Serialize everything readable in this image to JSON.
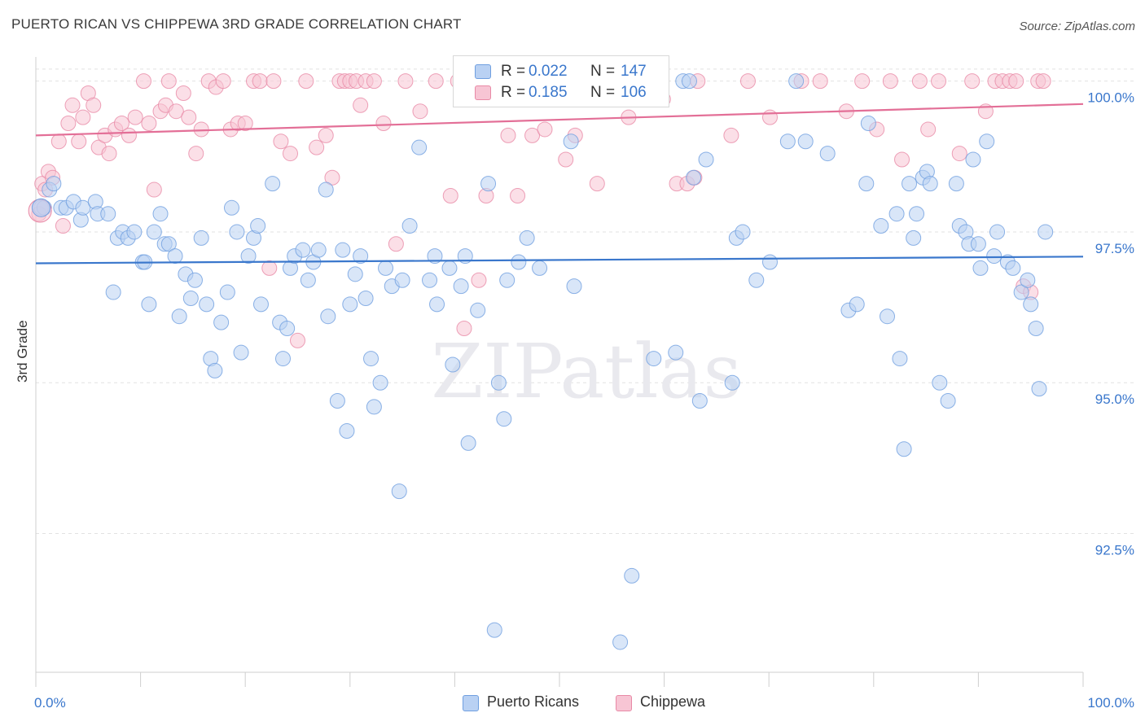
{
  "title": "PUERTO RICAN VS CHIPPEWA 3RD GRADE CORRELATION CHART",
  "source": "Source: ZipAtlas.com",
  "watermark": "ZIPatlas",
  "chart_data": {
    "type": "scatter",
    "xlabel": "",
    "ylabel": "3rd Grade",
    "xlim": [
      0,
      100
    ],
    "ylim": [
      90.2,
      100.4
    ],
    "x_tick_labels": [
      "0.0%",
      "100.0%"
    ],
    "y_ticks": [
      92.5,
      95.0,
      97.5,
      100.0
    ],
    "y_tick_labels": [
      "92.5%",
      "95.0%",
      "97.5%",
      "100.0%"
    ],
    "legend": [
      {
        "name": "Puerto Ricans",
        "r_label": "R =",
        "r": "0.022",
        "n_label": "N =",
        "n": "147",
        "color": "#6f9fe0",
        "fill": "#b9d1f3"
      },
      {
        "name": "Chippewa",
        "r_label": "R =",
        "r": "0.185",
        "n_label": "N =",
        "n": "106",
        "color": "#e889a6",
        "fill": "#f7c5d4"
      }
    ],
    "series": [
      {
        "name": "Puerto Ricans",
        "color": "#3a77cc",
        "trend": {
          "y0": 96.98,
          "y1": 97.09
        },
        "points": [
          [
            0.5,
            97.9
          ],
          [
            0.8,
            97.9
          ],
          [
            1.3,
            98.2
          ],
          [
            1.7,
            98.3
          ],
          [
            2.4,
            97.9
          ],
          [
            2.9,
            97.9
          ],
          [
            3.6,
            98.0
          ],
          [
            4.3,
            97.7
          ],
          [
            4.5,
            97.9
          ],
          [
            5.7,
            98.0
          ],
          [
            5.9,
            97.8
          ],
          [
            6.9,
            97.8
          ],
          [
            7.4,
            96.5
          ],
          [
            7.8,
            97.4
          ],
          [
            8.3,
            97.5
          ],
          [
            8.8,
            97.4
          ],
          [
            9.4,
            97.5
          ],
          [
            10.2,
            97.0
          ],
          [
            10.4,
            97.0
          ],
          [
            10.8,
            96.3
          ],
          [
            11.3,
            97.5
          ],
          [
            11.9,
            97.8
          ],
          [
            12.3,
            97.3
          ],
          [
            12.7,
            97.3
          ],
          [
            13.3,
            97.1
          ],
          [
            13.7,
            96.1
          ],
          [
            14.3,
            96.8
          ],
          [
            14.8,
            96.4
          ],
          [
            15.2,
            96.7
          ],
          [
            15.8,
            97.4
          ],
          [
            16.3,
            96.3
          ],
          [
            16.7,
            95.4
          ],
          [
            17.1,
            95.2
          ],
          [
            17.7,
            96.0
          ],
          [
            18.3,
            96.5
          ],
          [
            18.7,
            97.9
          ],
          [
            19.2,
            97.5
          ],
          [
            19.6,
            95.5
          ],
          [
            20.3,
            97.1
          ],
          [
            20.8,
            97.4
          ],
          [
            21.2,
            97.6
          ],
          [
            21.5,
            96.3
          ],
          [
            22.6,
            98.3
          ],
          [
            23.3,
            96.0
          ],
          [
            23.6,
            95.4
          ],
          [
            24.0,
            95.9
          ],
          [
            24.3,
            96.9
          ],
          [
            24.7,
            97.1
          ],
          [
            25.5,
            97.2
          ],
          [
            26.0,
            96.7
          ],
          [
            26.5,
            97.0
          ],
          [
            27.0,
            97.2
          ],
          [
            27.7,
            98.2
          ],
          [
            27.9,
            96.1
          ],
          [
            28.8,
            94.7
          ],
          [
            29.3,
            97.2
          ],
          [
            29.7,
            94.2
          ],
          [
            30.0,
            96.3
          ],
          [
            30.5,
            96.8
          ],
          [
            31.0,
            97.1
          ],
          [
            31.5,
            96.4
          ],
          [
            32.0,
            95.4
          ],
          [
            32.3,
            94.6
          ],
          [
            32.9,
            95.0
          ],
          [
            33.4,
            96.9
          ],
          [
            34.0,
            96.6
          ],
          [
            34.7,
            93.2
          ],
          [
            35.0,
            96.7
          ],
          [
            35.7,
            97.6
          ],
          [
            36.6,
            98.9
          ],
          [
            37.6,
            96.7
          ],
          [
            38.1,
            97.1
          ],
          [
            38.3,
            96.3
          ],
          [
            39.5,
            96.9
          ],
          [
            39.8,
            95.3
          ],
          [
            40.6,
            96.6
          ],
          [
            41.0,
            97.1
          ],
          [
            41.3,
            94.0
          ],
          [
            42.2,
            96.2
          ],
          [
            43.2,
            98.3
          ],
          [
            43.8,
            90.9
          ],
          [
            44.2,
            95.0
          ],
          [
            44.7,
            94.4
          ],
          [
            45.0,
            96.7
          ],
          [
            46.1,
            97.0
          ],
          [
            46.3,
            99.8
          ],
          [
            46.9,
            97.4
          ],
          [
            47.5,
            100.0
          ],
          [
            48.1,
            96.9
          ],
          [
            49.1,
            100.0
          ],
          [
            51.1,
            99.0
          ],
          [
            51.4,
            96.6
          ],
          [
            55.8,
            90.7
          ],
          [
            56.9,
            91.8
          ],
          [
            57.0,
            99.7
          ],
          [
            57.7,
            100.0
          ],
          [
            59.0,
            95.4
          ],
          [
            61.1,
            95.5
          ],
          [
            61.8,
            100.0
          ],
          [
            62.4,
            100.0
          ],
          [
            62.8,
            98.4
          ],
          [
            63.4,
            94.7
          ],
          [
            64.0,
            98.7
          ],
          [
            66.5,
            95.0
          ],
          [
            66.9,
            97.4
          ],
          [
            67.5,
            97.5
          ],
          [
            68.8,
            96.7
          ],
          [
            70.1,
            97.0
          ],
          [
            71.8,
            99.0
          ],
          [
            72.6,
            100.0
          ],
          [
            73.5,
            99.0
          ],
          [
            75.6,
            98.8
          ],
          [
            77.6,
            96.2
          ],
          [
            78.4,
            96.3
          ],
          [
            79.3,
            98.3
          ],
          [
            79.5,
            99.3
          ],
          [
            80.7,
            97.6
          ],
          [
            81.3,
            96.1
          ],
          [
            82.2,
            97.8
          ],
          [
            82.5,
            95.4
          ],
          [
            82.9,
            93.9
          ],
          [
            83.4,
            98.3
          ],
          [
            83.8,
            97.4
          ],
          [
            84.1,
            97.8
          ],
          [
            84.7,
            98.4
          ],
          [
            85.1,
            98.5
          ],
          [
            85.4,
            98.3
          ],
          [
            86.3,
            95.0
          ],
          [
            87.1,
            94.7
          ],
          [
            87.9,
            98.3
          ],
          [
            88.2,
            97.6
          ],
          [
            88.8,
            97.5
          ],
          [
            89.1,
            97.3
          ],
          [
            89.5,
            98.7
          ],
          [
            90.0,
            97.3
          ],
          [
            90.2,
            96.9
          ],
          [
            90.8,
            99.0
          ],
          [
            91.5,
            97.1
          ],
          [
            91.8,
            97.5
          ],
          [
            92.8,
            97.0
          ],
          [
            93.3,
            96.9
          ],
          [
            94.1,
            96.5
          ],
          [
            94.7,
            96.7
          ],
          [
            95.0,
            96.3
          ],
          [
            95.5,
            95.9
          ],
          [
            95.8,
            94.9
          ],
          [
            96.4,
            97.5
          ]
        ]
      },
      {
        "name": "Chippewa",
        "color": "#e36f97",
        "trend": {
          "y0": 99.1,
          "y1": 99.62
        },
        "points": [
          [
            0.3,
            97.8
          ],
          [
            0.6,
            98.3
          ],
          [
            0.9,
            98.2
          ],
          [
            1.2,
            98.5
          ],
          [
            1.6,
            98.4
          ],
          [
            2.2,
            99.0
          ],
          [
            2.6,
            97.6
          ],
          [
            3.1,
            99.3
          ],
          [
            3.5,
            99.6
          ],
          [
            4.1,
            99.0
          ],
          [
            4.5,
            99.4
          ],
          [
            5.0,
            99.8
          ],
          [
            5.5,
            99.6
          ],
          [
            6.0,
            98.9
          ],
          [
            6.6,
            99.1
          ],
          [
            7.0,
            98.8
          ],
          [
            7.6,
            99.2
          ],
          [
            8.2,
            99.3
          ],
          [
            8.9,
            99.1
          ],
          [
            9.5,
            99.4
          ],
          [
            10.3,
            100.0
          ],
          [
            10.8,
            99.3
          ],
          [
            11.3,
            98.2
          ],
          [
            11.9,
            99.5
          ],
          [
            12.4,
            99.6
          ],
          [
            12.7,
            100.0
          ],
          [
            13.4,
            99.5
          ],
          [
            14.1,
            99.8
          ],
          [
            14.6,
            99.4
          ],
          [
            15.3,
            98.8
          ],
          [
            15.8,
            99.2
          ],
          [
            16.5,
            100.0
          ],
          [
            17.2,
            99.9
          ],
          [
            17.9,
            100.0
          ],
          [
            18.6,
            99.2
          ],
          [
            19.3,
            99.3
          ],
          [
            20.0,
            99.3
          ],
          [
            20.8,
            100.0
          ],
          [
            21.4,
            100.0
          ],
          [
            22.3,
            96.9
          ],
          [
            22.7,
            100.0
          ],
          [
            23.4,
            99.0
          ],
          [
            24.3,
            98.8
          ],
          [
            25.0,
            95.7
          ],
          [
            25.8,
            100.0
          ],
          [
            26.8,
            98.9
          ],
          [
            27.7,
            99.1
          ],
          [
            28.3,
            98.4
          ],
          [
            29.0,
            100.0
          ],
          [
            29.5,
            100.0
          ],
          [
            30.0,
            100.0
          ],
          [
            30.6,
            100.0
          ],
          [
            31.0,
            99.6
          ],
          [
            31.5,
            100.0
          ],
          [
            32.3,
            100.0
          ],
          [
            33.2,
            99.3
          ],
          [
            34.4,
            97.3
          ],
          [
            35.3,
            100.0
          ],
          [
            36.7,
            99.5
          ],
          [
            38.2,
            100.0
          ],
          [
            39.6,
            98.1
          ],
          [
            40.3,
            100.0
          ],
          [
            40.9,
            95.9
          ],
          [
            41.6,
            100.0
          ],
          [
            42.3,
            96.7
          ],
          [
            43.0,
            98.1
          ],
          [
            44.3,
            100.0
          ],
          [
            45.1,
            99.1
          ],
          [
            46.0,
            98.1
          ],
          [
            47.4,
            99.1
          ],
          [
            48.6,
            99.2
          ],
          [
            50.6,
            98.7
          ],
          [
            51.5,
            99.1
          ],
          [
            53.6,
            98.3
          ],
          [
            54.3,
            100.0
          ],
          [
            56.6,
            99.4
          ],
          [
            57.7,
            100.0
          ],
          [
            59.9,
            99.7
          ],
          [
            61.2,
            98.3
          ],
          [
            62.2,
            98.3
          ],
          [
            62.9,
            98.4
          ],
          [
            63.2,
            100.0
          ],
          [
            66.4,
            99.1
          ],
          [
            68.0,
            100.0
          ],
          [
            70.1,
            99.4
          ],
          [
            73.1,
            100.0
          ],
          [
            74.9,
            100.0
          ],
          [
            77.4,
            99.5
          ],
          [
            78.9,
            100.0
          ],
          [
            80.3,
            99.2
          ],
          [
            81.6,
            100.0
          ],
          [
            82.7,
            98.7
          ],
          [
            84.4,
            100.0
          ],
          [
            85.2,
            99.2
          ],
          [
            86.2,
            100.0
          ],
          [
            88.2,
            98.8
          ],
          [
            89.4,
            100.0
          ],
          [
            90.7,
            99.5
          ],
          [
            91.6,
            100.0
          ],
          [
            92.3,
            100.0
          ],
          [
            93.0,
            100.0
          ],
          [
            93.6,
            100.0
          ],
          [
            94.3,
            96.6
          ],
          [
            95.0,
            96.5
          ],
          [
            95.7,
            100.0
          ],
          [
            96.2,
            100.0
          ]
        ]
      }
    ]
  }
}
